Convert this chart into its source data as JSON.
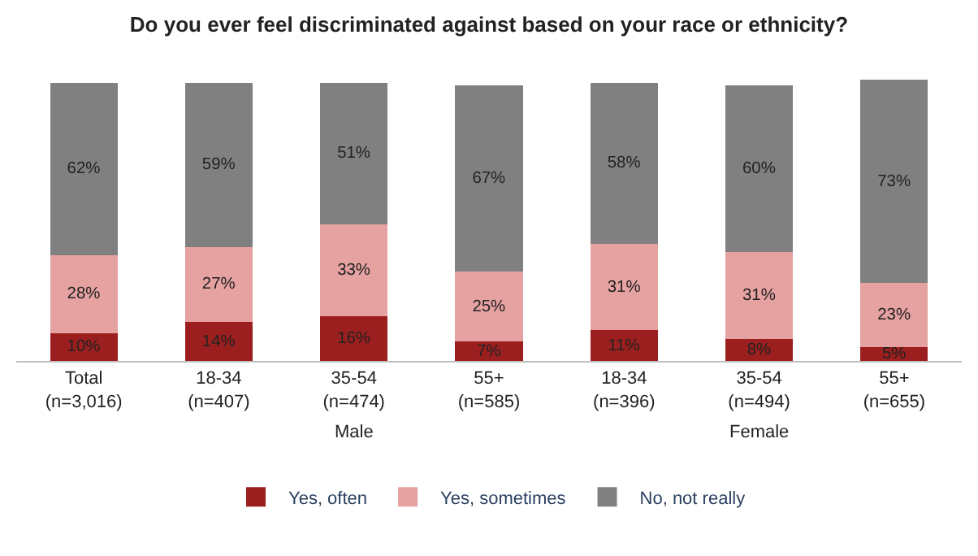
{
  "chart_data": {
    "type": "bar",
    "stacked": true,
    "title": "Do you ever feel discriminated against based on your race or ethnicity?",
    "categories": [
      "Total\n(n=3,016)",
      "18-34\n(n=407)",
      "35-54\n(n=474)",
      "55+\n(n=585)",
      "18-34\n(n=396)",
      "35-54\n(n=494)",
      "55+\n(n=655)"
    ],
    "series": [
      {
        "name": "Yes, often",
        "color": "#9c1f1f",
        "values": [
          10,
          14,
          16,
          7,
          11,
          8,
          5
        ],
        "value_labels": [
          "10%",
          "14%",
          "16%",
          "7%",
          "11%",
          "8%",
          "5%"
        ]
      },
      {
        "name": "Yes, sometimes",
        "color": "#e6a1a1",
        "values": [
          28,
          27,
          33,
          25,
          31,
          31,
          23
        ],
        "value_labels": [
          "28%",
          "27%",
          "33%",
          "25%",
          "31%",
          "31%",
          "23%"
        ]
      },
      {
        "name": "No, not really",
        "color": "#808080",
        "values": [
          62,
          59,
          51,
          67,
          58,
          60,
          73
        ],
        "value_labels": [
          "62%",
          "59%",
          "51%",
          "67%",
          "58%",
          "60%",
          "73%"
        ]
      }
    ],
    "annotations": [
      "Male",
      "Female"
    ],
    "legend": "bottom"
  }
}
